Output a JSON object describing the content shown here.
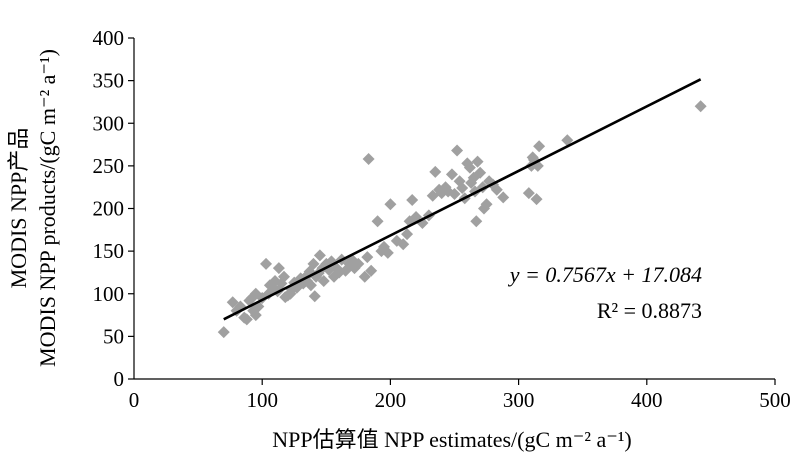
{
  "chart_data": {
    "type": "scatter",
    "xlabel": "NPP估算值 NPP estimates/(gC m⁻² a⁻¹)",
    "ylabel_line1": "MODIS NPP产品",
    "ylabel_line2": "MODIS NPP products/(gC m⁻² a⁻¹)",
    "xlim": [
      0,
      500
    ],
    "ylim": [
      0,
      400
    ],
    "xticks": [
      "0",
      "100",
      "200",
      "300",
      "400",
      "500"
    ],
    "yticks": [
      "0",
      "50",
      "100",
      "150",
      "200",
      "250",
      "300",
      "350",
      "400"
    ],
    "grid": false,
    "marker": "diamond",
    "marker_color": "#a0a0a0",
    "line_color": "#000000",
    "fit": {
      "slope": 0.7567,
      "intercept": 17.084,
      "x_range": [
        70,
        442
      ]
    },
    "equation_text": "y = 0.7567x + 17.084",
    "r2_text": "R² = 0.8873",
    "points": [
      [
        70,
        55
      ],
      [
        77,
        90
      ],
      [
        80,
        80
      ],
      [
        83,
        85
      ],
      [
        86,
        72
      ],
      [
        88,
        70
      ],
      [
        90,
        92
      ],
      [
        92,
        95
      ],
      [
        93,
        80
      ],
      [
        95,
        75
      ],
      [
        95,
        100
      ],
      [
        97,
        85
      ],
      [
        100,
        95
      ],
      [
        103,
        135
      ],
      [
        105,
        100
      ],
      [
        106,
        110
      ],
      [
        108,
        108
      ],
      [
        110,
        115
      ],
      [
        112,
        103
      ],
      [
        113,
        130
      ],
      [
        115,
        112
      ],
      [
        117,
        120
      ],
      [
        118,
        96
      ],
      [
        120,
        98
      ],
      [
        122,
        100
      ],
      [
        123,
        105
      ],
      [
        125,
        113
      ],
      [
        127,
        107
      ],
      [
        130,
        118
      ],
      [
        132,
        112
      ],
      [
        134,
        120
      ],
      [
        135,
        115
      ],
      [
        137,
        126
      ],
      [
        138,
        110
      ],
      [
        140,
        135
      ],
      [
        141,
        97
      ],
      [
        142,
        120
      ],
      [
        144,
        124
      ],
      [
        145,
        145
      ],
      [
        147,
        130
      ],
      [
        148,
        115
      ],
      [
        150,
        135
      ],
      [
        152,
        128
      ],
      [
        154,
        138
      ],
      [
        156,
        120
      ],
      [
        158,
        130
      ],
      [
        160,
        125
      ],
      [
        162,
        140
      ],
      [
        165,
        127
      ],
      [
        168,
        135
      ],
      [
        170,
        140
      ],
      [
        172,
        130
      ],
      [
        175,
        135
      ],
      [
        180,
        120
      ],
      [
        182,
        143
      ],
      [
        183,
        258
      ],
      [
        185,
        127
      ],
      [
        190,
        185
      ],
      [
        193,
        150
      ],
      [
        195,
        155
      ],
      [
        198,
        148
      ],
      [
        200,
        205
      ],
      [
        205,
        162
      ],
      [
        210,
        158
      ],
      [
        213,
        170
      ],
      [
        215,
        185
      ],
      [
        217,
        210
      ],
      [
        220,
        190
      ],
      [
        225,
        183
      ],
      [
        230,
        192
      ],
      [
        233,
        215
      ],
      [
        235,
        243
      ],
      [
        238,
        222
      ],
      [
        240,
        218
      ],
      [
        243,
        225
      ],
      [
        245,
        220
      ],
      [
        248,
        240
      ],
      [
        250,
        217
      ],
      [
        252,
        268
      ],
      [
        254,
        232
      ],
      [
        256,
        224
      ],
      [
        258,
        212
      ],
      [
        260,
        253
      ],
      [
        262,
        248
      ],
      [
        263,
        230
      ],
      [
        265,
        236
      ],
      [
        266,
        220
      ],
      [
        267,
        185
      ],
      [
        268,
        255
      ],
      [
        270,
        242
      ],
      [
        272,
        225
      ],
      [
        273,
        200
      ],
      [
        275,
        205
      ],
      [
        277,
        232
      ],
      [
        280,
        228
      ],
      [
        283,
        222
      ],
      [
        288,
        213
      ],
      [
        308,
        218
      ],
      [
        310,
        250
      ],
      [
        311,
        260
      ],
      [
        312,
        257
      ],
      [
        314,
        211
      ],
      [
        315,
        250
      ],
      [
        316,
        273
      ],
      [
        338,
        280
      ],
      [
        442,
        320
      ]
    ]
  }
}
